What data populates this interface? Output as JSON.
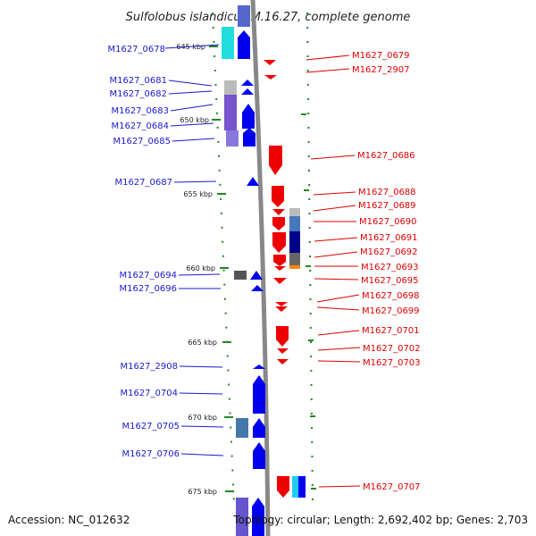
{
  "title": "Sulfolobus islandicus M.16.27, complete genome",
  "footer": {
    "accession": "Accession: NC_012632",
    "topology": "Topology: circular; Length: 2,692,402 bp; Genes: 2,703"
  },
  "colors": {
    "forward": "#0000ee",
    "reverse": "#ee0000",
    "left_label": "#1a1acc",
    "right_label": "#dd0000",
    "tick": "#228822",
    "backbone": "#888888"
  },
  "scale": {
    "unit": "kbp",
    "ticks": [
      {
        "pos": 645,
        "label": "645 kbp"
      },
      {
        "pos": 650,
        "label": "650 kbp"
      },
      {
        "pos": 655,
        "label": "655 kbp"
      },
      {
        "pos": 660,
        "label": "660 kbp"
      },
      {
        "pos": 665,
        "label": "665 kbp"
      },
      {
        "pos": 670,
        "label": "670 kbp"
      },
      {
        "pos": 675,
        "label": "675 kbp"
      }
    ]
  },
  "genes_forward": [
    {
      "name": "M1627_0678"
    },
    {
      "name": "M1627_0681"
    },
    {
      "name": "M1627_0682"
    },
    {
      "name": "M1627_0683"
    },
    {
      "name": "M1627_0684"
    },
    {
      "name": "M1627_0685"
    },
    {
      "name": "M1627_0687"
    },
    {
      "name": "M1627_0694"
    },
    {
      "name": "M1627_0696"
    },
    {
      "name": "M1627_2908"
    },
    {
      "name": "M1627_0704"
    },
    {
      "name": "M1627_0705"
    },
    {
      "name": "M1627_0706"
    }
  ],
  "genes_reverse": [
    {
      "name": "M1627_0679"
    },
    {
      "name": "M1627_2907"
    },
    {
      "name": "M1627_0686"
    },
    {
      "name": "M1627_0688"
    },
    {
      "name": "M1627_0689"
    },
    {
      "name": "M1627_0690"
    },
    {
      "name": "M1627_0691"
    },
    {
      "name": "M1627_0692"
    },
    {
      "name": "M1627_0693"
    },
    {
      "name": "M1627_0695"
    },
    {
      "name": "M1627_0698"
    },
    {
      "name": "M1627_0699"
    },
    {
      "name": "M1627_0701"
    },
    {
      "name": "M1627_0702"
    },
    {
      "name": "M1627_0703"
    },
    {
      "name": "M1627_0707"
    }
  ]
}
